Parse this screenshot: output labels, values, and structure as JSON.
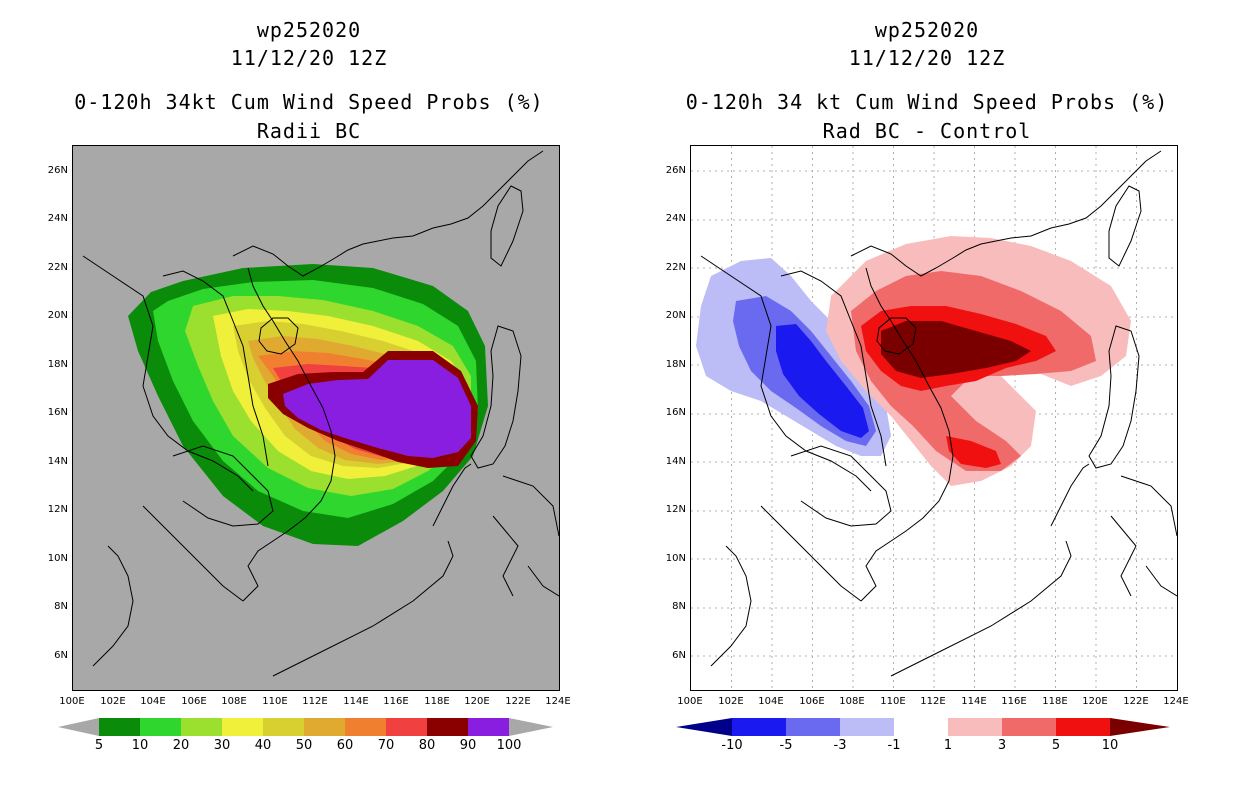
{
  "left_panel": {
    "title_id": "wp252020",
    "title_date": "11/12/20 12Z",
    "title_main": "0-120h 34kt Cum Wind Speed Probs (%)",
    "subtitle": "Radii BC",
    "lat_ticks": [
      "26N",
      "24N",
      "22N",
      "20N",
      "18N",
      "16N",
      "14N",
      "12N",
      "10N",
      "8N",
      "6N"
    ],
    "lon_ticks": [
      "100E",
      "102E",
      "104E",
      "106E",
      "108E",
      "110E",
      "112E",
      "114E",
      "116E",
      "118E",
      "120E",
      "122E",
      "124E"
    ],
    "legend": {
      "labels": [
        "5",
        "10",
        "20",
        "30",
        "40",
        "50",
        "60",
        "70",
        "80",
        "90",
        "100"
      ],
      "colors": [
        "#0a8c0a",
        "#2ed62e",
        "#9be02e",
        "#f0f03a",
        "#d8d030",
        "#e0aa30",
        "#f08030",
        "#f04040",
        "#8a0000",
        "#8a1ee0"
      ],
      "end_color": "#a8a8a8"
    },
    "background": "#a8a8a8"
  },
  "right_panel": {
    "title_id": "wp252020",
    "title_date": "11/12/20 12Z",
    "title_main": "0-120h 34 kt Cum Wind Speed Probs (%)",
    "subtitle": "Rad BC - Control",
    "lat_ticks": [
      "26N",
      "24N",
      "22N",
      "20N",
      "18N",
      "16N",
      "14N",
      "12N",
      "10N",
      "8N",
      "6N"
    ],
    "lon_ticks": [
      "100E",
      "102E",
      "104E",
      "106E",
      "108E",
      "110E",
      "112E",
      "114E",
      "116E",
      "118E",
      "120E",
      "122E",
      "124E"
    ],
    "legend": {
      "labels": [
        "-10",
        "-5",
        "-3",
        "-1",
        "1",
        "3",
        "5",
        "10"
      ],
      "colors": [
        "#0a0ab4",
        "#1a1af0",
        "#6a6af0",
        "#bcbcf6",
        "#ffffff",
        "#f8bcbc",
        "#f06a6a",
        "#f01010"
      ],
      "low_end_color": "#00008a",
      "high_end_color": "#7a0000"
    },
    "background": "#ffffff"
  }
}
